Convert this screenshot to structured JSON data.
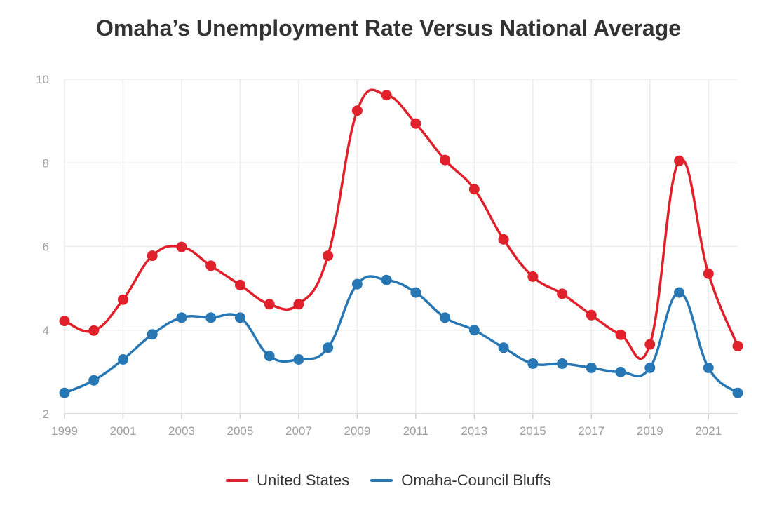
{
  "chart_data": {
    "type": "line",
    "title": "Omaha’s Unemployment Rate Versus National Average",
    "xlabel": "",
    "ylabel": "",
    "x": [
      1999,
      2000,
      2001,
      2002,
      2003,
      2004,
      2005,
      2006,
      2007,
      2008,
      2009,
      2010,
      2011,
      2012,
      2013,
      2014,
      2015,
      2016,
      2017,
      2018,
      2019,
      2020,
      2021,
      2022
    ],
    "x_tick_labels": [
      "1999",
      "2001",
      "2003",
      "2005",
      "2007",
      "2009",
      "2011",
      "2013",
      "2015",
      "2017",
      "2019",
      "2021"
    ],
    "y_tick_labels": [
      "2",
      "4",
      "6",
      "8",
      "10"
    ],
    "xlim": [
      1999,
      2022
    ],
    "ylim": [
      2,
      10
    ],
    "grid": true,
    "legend_position": "bottom",
    "series": [
      {
        "name": "United States",
        "color": "#e0202a",
        "values": [
          4.22,
          3.99,
          4.73,
          5.78,
          5.99,
          5.54,
          5.08,
          4.62,
          4.62,
          5.78,
          9.25,
          9.62,
          8.94,
          8.07,
          7.37,
          6.17,
          5.28,
          4.87,
          4.36,
          3.89,
          3.66,
          8.05,
          5.35,
          3.62
        ]
      },
      {
        "name": "Omaha-Council Bluffs",
        "color": "#2777b5",
        "values": [
          2.5,
          2.8,
          3.3,
          3.9,
          4.3,
          4.3,
          4.3,
          3.38,
          3.3,
          3.58,
          5.1,
          5.2,
          4.9,
          4.3,
          4.0,
          3.58,
          3.2,
          3.2,
          3.1,
          3.0,
          3.1,
          4.9,
          3.1,
          2.5
        ]
      }
    ]
  }
}
